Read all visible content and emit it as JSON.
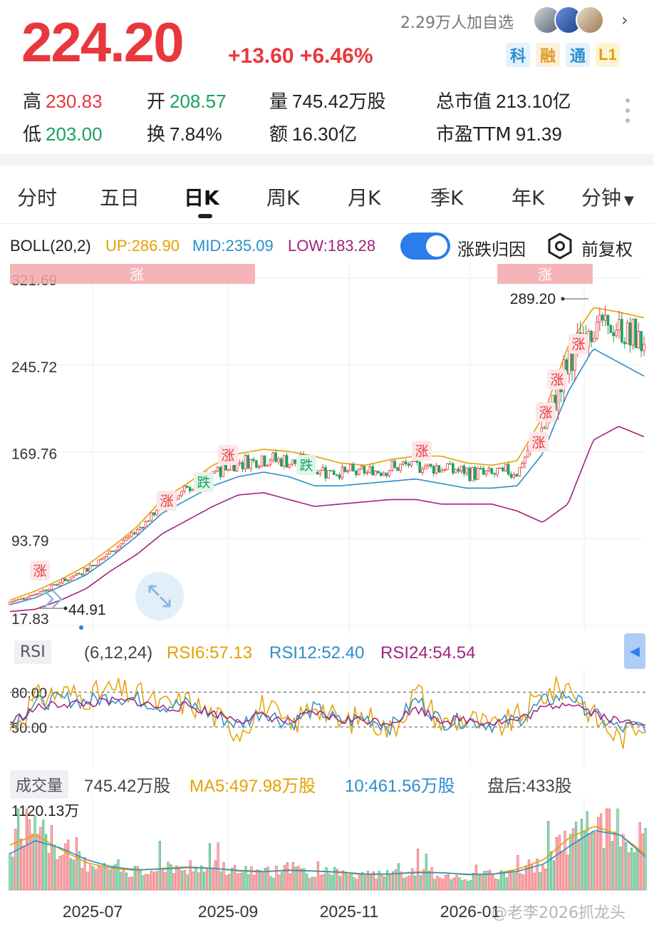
{
  "quote": {
    "price": "224.20",
    "change": "+13.60 +6.46%",
    "followers": "2.29万人加自选",
    "badges": [
      "科",
      "融",
      "通",
      "L1"
    ]
  },
  "stats": {
    "high_label": "高",
    "high": "230.83",
    "low_label": "低",
    "low": "203.00",
    "open_label": "开",
    "open": "208.57",
    "turnover_label": "换",
    "turnover": "7.84%",
    "volume_label": "量",
    "volume": "745.42万股",
    "amount_label": "额",
    "amount": "16.30亿",
    "mktcap_label": "总市值",
    "mktcap": "213.10亿",
    "pe_label": "市盈TTM",
    "pe": "91.39"
  },
  "tabs": [
    "分时",
    "五日",
    "日K",
    "周K",
    "月K",
    "季K",
    "年K",
    "分钟"
  ],
  "active_tab": "日K",
  "boll": {
    "name": "BOLL(20,2)",
    "up": "UP:286.90",
    "mid": "MID:235.09",
    "low": "LOW:183.28",
    "attribution_label": "涨跌归因",
    "adjust_label": "前复权"
  },
  "colors": {
    "up": "#e8383d",
    "down": "#1aa260",
    "boll_up": "#e5a000",
    "boll_mid": "#2b8fc9",
    "boll_low": "#a0237e",
    "accent": "#2b7de9"
  },
  "markers": {
    "up": "涨",
    "down": "跌",
    "band_label": "涨"
  },
  "chart_data": [
    {
      "type": "candlestick",
      "title": "",
      "y_ticks": [
        "321.69",
        "245.72",
        "169.76",
        "93.79",
        "17.83"
      ],
      "ylim": [
        17.83,
        321.69
      ],
      "x_ticks": [
        "2025-07",
        "2025-09",
        "2025-11",
        "2026-01"
      ],
      "annotations": {
        "max": "289.20",
        "min": "44.91"
      },
      "series": [
        {
          "name": "UP",
          "values": [
            40,
            48,
            58,
            70,
            86,
            104,
            128,
            142,
            158,
            168,
            172,
            170,
            166,
            160,
            158,
            163,
            166,
            166,
            160,
            158,
            162,
            200,
            262,
            296,
            292,
            287
          ]
        },
        {
          "name": "MID",
          "values": [
            36,
            42,
            52,
            62,
            78,
            96,
            116,
            128,
            140,
            148,
            152,
            148,
            140,
            140,
            142,
            144,
            146,
            142,
            138,
            138,
            140,
            168,
            222,
            260,
            248,
            236
          ]
        },
        {
          "name": "LOW",
          "values": [
            30,
            32,
            40,
            50,
            66,
            80,
            98,
            110,
            122,
            132,
            134,
            128,
            122,
            124,
            126,
            128,
            128,
            124,
            124,
            124,
            118,
            108,
            124,
            180,
            192,
            183
          ]
        }
      ]
    },
    {
      "type": "line",
      "title": "RSI",
      "params": "(6,12,24)",
      "legend": [
        "RSI6:57.13",
        "RSI12:52.40",
        "RSI24:54.54"
      ],
      "y_ticks": [
        "80.00",
        "50.00"
      ],
      "series": [
        {
          "name": "RSI6",
          "values": [
            48,
            74,
            80,
            76,
            82,
            78,
            68,
            72,
            60,
            46,
            70,
            48,
            72,
            52,
            60,
            46,
            82,
            52,
            58,
            48,
            58,
            78,
            86,
            58,
            40,
            57
          ]
        },
        {
          "name": "RSI12",
          "values": [
            52,
            70,
            74,
            72,
            76,
            74,
            68,
            70,
            60,
            52,
            64,
            52,
            66,
            54,
            58,
            50,
            74,
            54,
            56,
            52,
            56,
            72,
            78,
            60,
            48,
            52
          ]
        },
        {
          "name": "RSI24",
          "values": [
            54,
            66,
            70,
            70,
            72,
            72,
            66,
            68,
            62,
            56,
            60,
            54,
            62,
            56,
            56,
            54,
            66,
            56,
            56,
            54,
            56,
            66,
            72,
            62,
            54,
            55
          ]
        }
      ]
    },
    {
      "type": "bar",
      "title": "成交量",
      "legend": [
        "745.42万股",
        "MA5:497.98万股",
        "10:461.56万股",
        "盘后:433股"
      ],
      "y_ticks": [
        "1120.13万"
      ],
      "ylim": [
        0,
        1120.13
      ],
      "values": [
        720,
        840,
        640,
        380,
        300,
        260,
        300,
        340,
        320,
        260,
        240,
        300,
        260,
        240,
        200,
        220,
        260,
        240,
        200,
        220,
        300,
        420,
        780,
        980,
        860,
        745
      ],
      "series": [
        {
          "name": "MA5",
          "values": [
            620,
            760,
            560,
            380,
            300,
            270,
            300,
            320,
            300,
            260,
            250,
            280,
            260,
            240,
            210,
            220,
            250,
            240,
            210,
            220,
            290,
            420,
            720,
            880,
            760,
            498
          ]
        },
        {
          "name": "MA10",
          "values": [
            500,
            680,
            580,
            420,
            320,
            280,
            290,
            310,
            300,
            270,
            255,
            270,
            262,
            248,
            220,
            222,
            240,
            238,
            218,
            220,
            260,
            360,
            600,
            820,
            760,
            462
          ]
        }
      ]
    }
  ],
  "watermark": "@老李2026抓龙头"
}
